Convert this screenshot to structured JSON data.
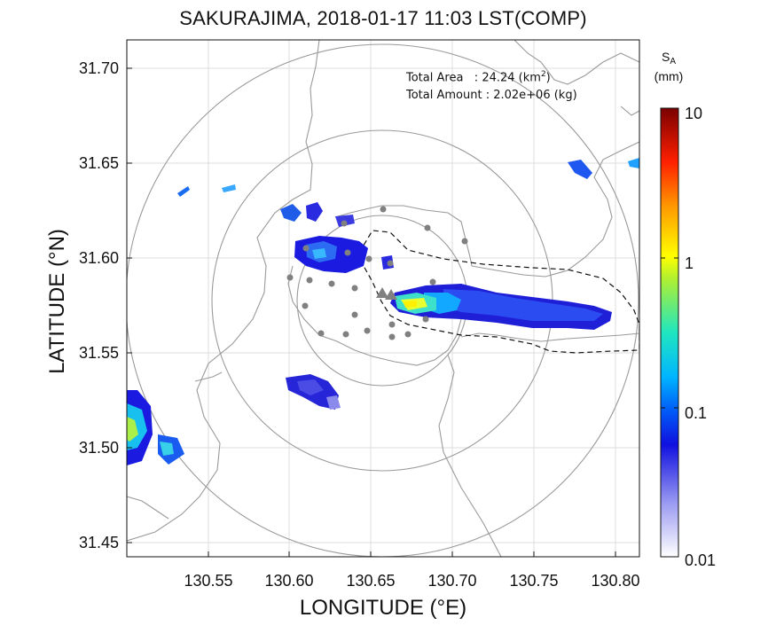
{
  "title": "SAKURAJIMA, 2018-01-17 11:03 LST(COMP)",
  "xlabel": "LONGITUDE (°E)",
  "ylabel": "LATITUDE (°N)",
  "stats": {
    "area_label": "Total Area   : 24.24 (km",
    "area_sup": "2",
    "area_end": ")",
    "amount_label": "Total Amount : 2.02e+06 (kg)"
  },
  "colorbar": {
    "title_main": "S",
    "title_sub": "A",
    "unit": "(mm)",
    "scale": "log",
    "ticks": [
      "10",
      "1",
      "0.1",
      "0.01"
    ],
    "range": [
      0.01,
      10
    ],
    "colors": [
      "#ffffff",
      "#1010e0",
      "#00b8ff",
      "#ffff00",
      "#ff7a00",
      "#e00000",
      "#7a0000"
    ]
  },
  "map": {
    "xticks": [
      "130.55",
      "130.60",
      "130.65",
      "130.70",
      "130.75",
      "130.80"
    ],
    "yticks": [
      "31.70",
      "31.65",
      "31.60",
      "31.55",
      "31.50",
      "31.45"
    ],
    "xlim": [
      130.505,
      130.82
    ],
    "ylim": [
      31.442,
      31.712
    ],
    "radar_center": [
      130.659,
      31.58
    ],
    "range_rings": [
      "inner",
      "middle",
      "outer"
    ]
  },
  "chart_data": {
    "type": "heatmap",
    "quantity": "S_A (mm)",
    "xlabel": "LONGITUDE (°E)",
    "ylabel": "LATITUDE (°N)",
    "xlim": [
      130.505,
      130.82
    ],
    "ylim": [
      31.442,
      31.712
    ],
    "clim": [
      0.01,
      10
    ],
    "colorscale": "log",
    "plume": [
      {
        "lon": 130.68,
        "lat": 31.574,
        "value": 0.35
      },
      {
        "lon": 130.69,
        "lat": 31.573,
        "value": 0.25
      },
      {
        "lon": 130.7,
        "lat": 31.573,
        "value": 0.12
      },
      {
        "lon": 130.71,
        "lat": 31.573,
        "value": 0.05
      },
      {
        "lon": 130.73,
        "lat": 31.572,
        "value": 0.03
      },
      {
        "lon": 130.75,
        "lat": 31.57,
        "value": 0.025
      },
      {
        "lon": 130.77,
        "lat": 31.568,
        "value": 0.02
      },
      {
        "lon": 130.79,
        "lat": 31.566,
        "value": 0.02
      }
    ],
    "patches": [
      {
        "lon": 130.61,
        "lat": 31.603,
        "value": 0.03
      },
      {
        "lon": 130.635,
        "lat": 31.532,
        "value": 0.02
      },
      {
        "lon": 130.51,
        "lat": 31.51,
        "value": 0.1
      },
      {
        "lon": 130.525,
        "lat": 31.5,
        "value": 0.04
      }
    ]
  }
}
